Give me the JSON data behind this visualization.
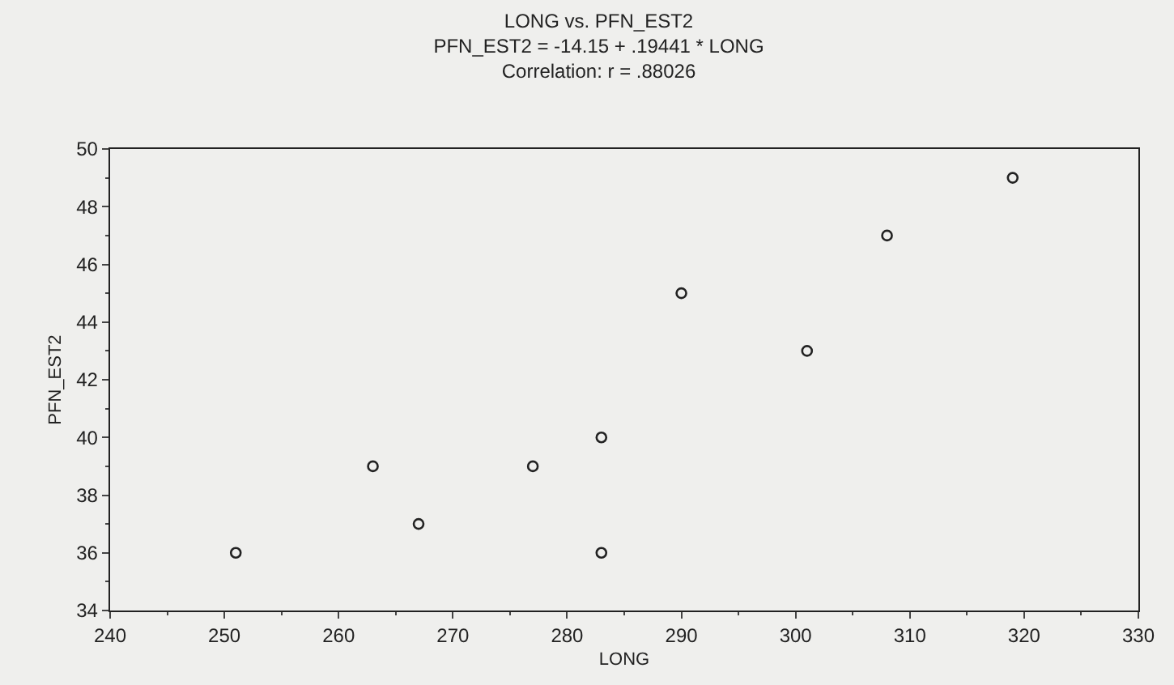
{
  "chart_data": {
    "type": "scatter",
    "title": "LONG vs. PFN_EST2",
    "subtitle": "PFN_EST2 = -14.15 + .19441 * LONG\nCorrelation: r = .88026",
    "xlabel": "LONG",
    "ylabel": "PFN_EST2",
    "x": [
      251,
      263,
      267,
      277,
      283,
      283,
      290,
      301,
      308,
      319
    ],
    "series": [
      {
        "color": "#222222",
        "values": [
          36,
          39,
          37,
          39,
          40,
          36,
          45,
          43,
          47,
          49
        ]
      }
    ],
    "xlim": [
      240,
      330
    ],
    "xticks": [
      240,
      250,
      260,
      270,
      280,
      290,
      300,
      310,
      320,
      330
    ],
    "ylim": [
      34,
      50
    ],
    "yticks": [
      34,
      36,
      38,
      40,
      42,
      44,
      46,
      48,
      50
    ],
    "marker": "circle",
    "grid": false
  }
}
